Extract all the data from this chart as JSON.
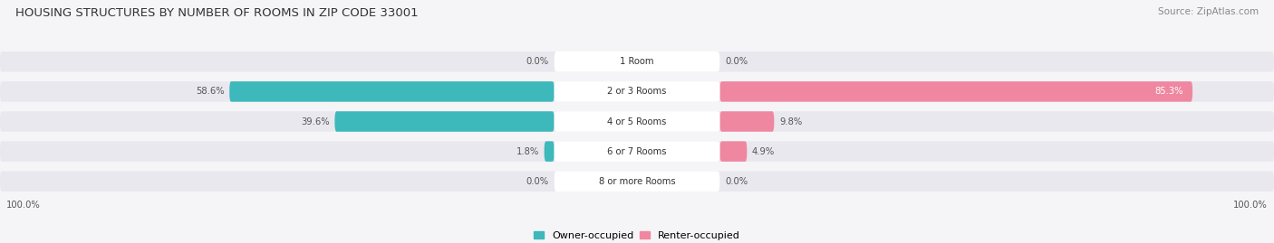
{
  "title": "HOUSING STRUCTURES BY NUMBER OF ROOMS IN ZIP CODE 33001",
  "source": "Source: ZipAtlas.com",
  "categories": [
    "1 Room",
    "2 or 3 Rooms",
    "4 or 5 Rooms",
    "6 or 7 Rooms",
    "8 or more Rooms"
  ],
  "owner_values": [
    0.0,
    58.6,
    39.6,
    1.8,
    0.0
  ],
  "renter_values": [
    0.0,
    85.3,
    9.8,
    4.9,
    0.0
  ],
  "owner_color": "#3db8bb",
  "renter_color": "#f087a0",
  "row_bg_color": "#e8e8ee",
  "owner_label": "Owner-occupied",
  "renter_label": "Renter-occupied",
  "max_value": 100.0,
  "figsize": [
    14.06,
    2.69
  ],
  "dpi": 100,
  "bg_color": "#f5f5f8"
}
